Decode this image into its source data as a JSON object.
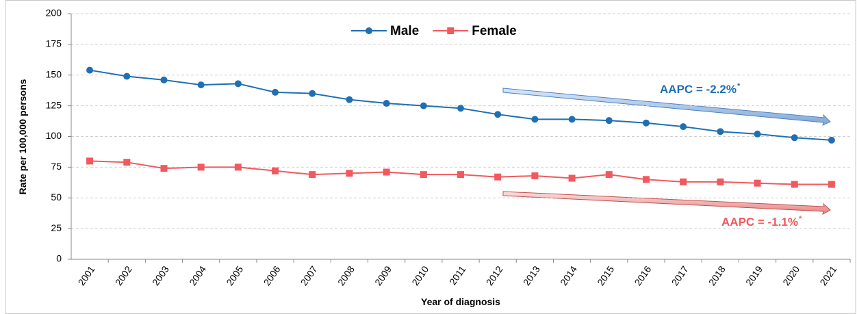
{
  "chart_data": {
    "type": "line",
    "x_label": "Year of diagnosis",
    "y_label": "Rate per 100,000 persons",
    "categories": [
      "2001",
      "2002",
      "2003",
      "2004",
      "2005",
      "2006",
      "2007",
      "2008",
      "2009",
      "2010",
      "2011",
      "2012",
      "2013",
      "2014",
      "2015",
      "2016",
      "2017",
      "2018",
      "2019",
      "2020",
      "2021"
    ],
    "series": [
      {
        "name": "Male",
        "color": "#1f6fb4",
        "marker": "circle",
        "values": [
          154,
          149,
          146,
          142,
          143,
          136,
          135,
          130,
          127,
          125,
          123,
          118,
          114,
          114,
          113,
          111,
          108,
          104,
          102,
          99,
          97
        ]
      },
      {
        "name": "Female",
        "color": "#f0595d",
        "marker": "square",
        "values": [
          80,
          79,
          74,
          75,
          75,
          72,
          69,
          70,
          71,
          69,
          69,
          67,
          68,
          66,
          69,
          65,
          63,
          63,
          62,
          61,
          61
        ]
      }
    ],
    "ylim": [
      0,
      200
    ],
    "yticks": [
      0,
      25,
      50,
      75,
      100,
      125,
      150,
      175,
      200
    ],
    "grid": true,
    "legend": "top",
    "annotations": [
      {
        "text": "AAPC = -2.2%",
        "sup": "*",
        "color": "#1f6fb4"
      },
      {
        "text": "AAPC = -1.1%",
        "sup": "*",
        "color": "#f0595d"
      }
    ]
  }
}
